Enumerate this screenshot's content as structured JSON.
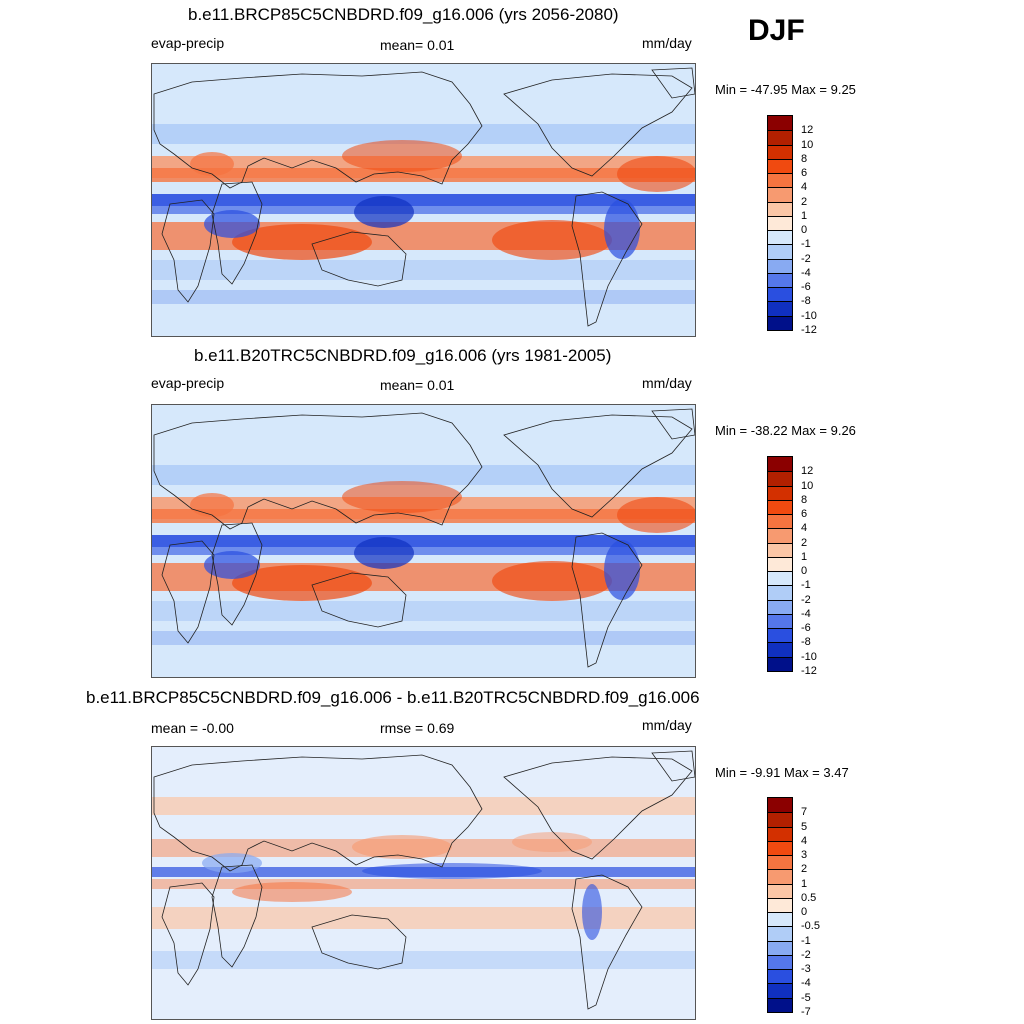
{
  "season": "DJF",
  "panels": [
    {
      "id": "future",
      "title": "b.e11.BRCP85C5CNBDRD.f09_g16.006 (yrs 2056-2080)",
      "left_label": "evap-precip",
      "center_label": "mean=   0.01",
      "units": "mm/day",
      "minmax": "Min = -47.95 Max =    9.25",
      "colorbar_levels": [
        "12",
        "10",
        "8",
        "6",
        "4",
        "2",
        "1",
        "0",
        "-1",
        "-2",
        "-4",
        "-6",
        "-8",
        "-10",
        "-12"
      ]
    },
    {
      "id": "historical",
      "title": "b.e11.B20TRC5CNBDRD.f09_g16.006 (yrs 1981-2005)",
      "left_label": "evap-precip",
      "center_label": "mean=   0.01",
      "units": "mm/day",
      "minmax": "Min = -38.22 Max =    9.26",
      "colorbar_levels": [
        "12",
        "10",
        "8",
        "6",
        "4",
        "2",
        "1",
        "0",
        "-1",
        "-2",
        "-4",
        "-6",
        "-8",
        "-10",
        "-12"
      ]
    },
    {
      "id": "difference",
      "title": "b.e11.BRCP85C5CNBDRD.f09_g16.006 - b.e11.B20TRC5CNBDRD.f09_g16.006",
      "left_label": "mean =  -0.00",
      "center_label": "rmse =   0.69",
      "units": "mm/day",
      "minmax": "Min =  -9.91 Max =    3.47",
      "colorbar_levels": [
        "7",
        "5",
        "4",
        "3",
        "2",
        "1",
        "0.5",
        "0",
        "-0.5",
        "-1",
        "-2",
        "-3",
        "-4",
        "-5",
        "-7"
      ]
    }
  ],
  "colors": {
    "palette": [
      "#8b0000",
      "#b22000",
      "#d33000",
      "#f04a10",
      "#f57440",
      "#f79a70",
      "#fbc6a6",
      "#fee9d8",
      "#d6e8fb",
      "#b0cdf7",
      "#88aaf2",
      "#5577ea",
      "#2a4fe0",
      "#1030c0",
      "#00108a"
    ],
    "land_outline": "#222222",
    "frame": "#555555"
  },
  "chart_data": [
    {
      "type": "heatmap",
      "title": "b.e11.BRCP85C5CNBDRD.f09_g16.006 (yrs 2056-2080)",
      "variable": "evap-precip",
      "units": "mm/day",
      "mean": 0.01,
      "min": -47.95,
      "max": 9.25,
      "contour_levels": [
        -12,
        -10,
        -8,
        -6,
        -4,
        -2,
        -1,
        0,
        1,
        2,
        4,
        6,
        8,
        10,
        12
      ]
    },
    {
      "type": "heatmap",
      "title": "b.e11.B20TRC5CNBDRD.f09_g16.006 (yrs 1981-2005)",
      "variable": "evap-precip",
      "units": "mm/day",
      "mean": 0.01,
      "min": -38.22,
      "max": 9.26,
      "contour_levels": [
        -12,
        -10,
        -8,
        -6,
        -4,
        -2,
        -1,
        0,
        1,
        2,
        4,
        6,
        8,
        10,
        12
      ]
    },
    {
      "type": "heatmap",
      "title": "b.e11.BRCP85C5CNBDRD.f09_g16.006 - b.e11.B20TRC5CNBDRD.f09_g16.006",
      "units": "mm/day",
      "mean": -0.0,
      "rmse": 0.69,
      "min": -9.91,
      "max": 3.47,
      "contour_levels": [
        -7,
        -5,
        -4,
        -3,
        -2,
        -1,
        -0.5,
        0,
        0.5,
        1,
        2,
        3,
        4,
        5,
        7
      ]
    }
  ]
}
